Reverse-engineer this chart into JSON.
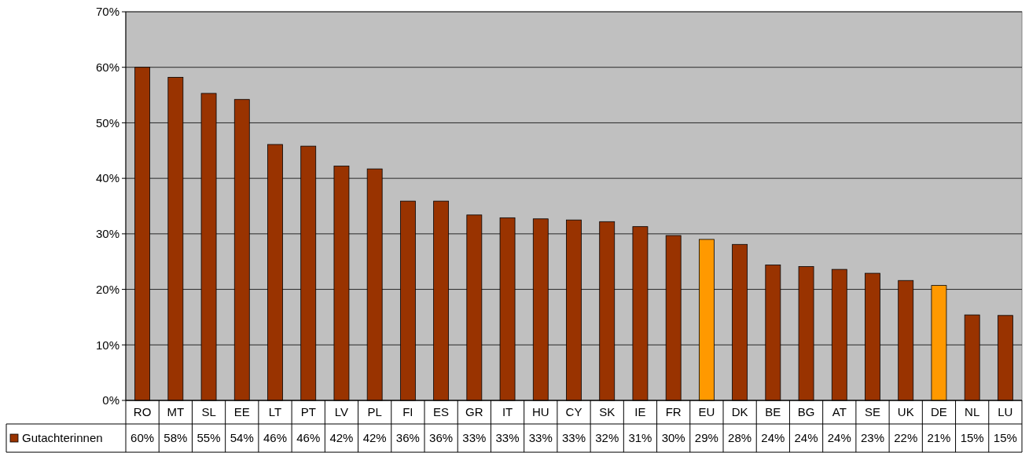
{
  "chart_data": {
    "type": "bar",
    "categories": [
      "RO",
      "MT",
      "SL",
      "EE",
      "LT",
      "PT",
      "LV",
      "PL",
      "FI",
      "ES",
      "GR",
      "IT",
      "HU",
      "CY",
      "SK",
      "IE",
      "FR",
      "EU",
      "DK",
      "BE",
      "BG",
      "AT",
      "SE",
      "UK",
      "DE",
      "NL",
      "LU"
    ],
    "series": [
      {
        "name": "Gutachterinnen",
        "color": "#993300",
        "colors": [
          "#993300",
          "#993300",
          "#993300",
          "#993300",
          "#993300",
          "#993300",
          "#993300",
          "#993300",
          "#993300",
          "#993300",
          "#993300",
          "#993300",
          "#993300",
          "#993300",
          "#993300",
          "#993300",
          "#993300",
          "#ff9900",
          "#993300",
          "#993300",
          "#993300",
          "#993300",
          "#993300",
          "#993300",
          "#ff9900",
          "#993300",
          "#993300"
        ],
        "values": [
          60,
          58.2,
          55.3,
          54.2,
          46.1,
          45.8,
          42.2,
          41.7,
          35.9,
          35.9,
          33.4,
          32.9,
          32.7,
          32.5,
          32.2,
          31.3,
          29.7,
          29.0,
          28.1,
          24.4,
          24.1,
          23.6,
          22.9,
          21.6,
          20.7,
          15.4,
          15.3
        ],
        "value_labels": [
          "60%",
          "58%",
          "55%",
          "54%",
          "46%",
          "46%",
          "42%",
          "42%",
          "36%",
          "36%",
          "33%",
          "33%",
          "33%",
          "33%",
          "32%",
          "31%",
          "30%",
          "29%",
          "28%",
          "24%",
          "24%",
          "24%",
          "23%",
          "22%",
          "21%",
          "15%",
          "15%"
        ]
      }
    ],
    "ylim": [
      0,
      70
    ],
    "yticks": [
      {
        "value": 0,
        "label": "0%"
      },
      {
        "value": 10,
        "label": "10%"
      },
      {
        "value": 20,
        "label": "20%"
      },
      {
        "value": 30,
        "label": "30%"
      },
      {
        "value": 40,
        "label": "40%"
      },
      {
        "value": 50,
        "label": "50%"
      },
      {
        "value": 60,
        "label": "60%"
      },
      {
        "value": 70,
        "label": "70%"
      }
    ],
    "grid": "y",
    "legend": "bottom left"
  }
}
